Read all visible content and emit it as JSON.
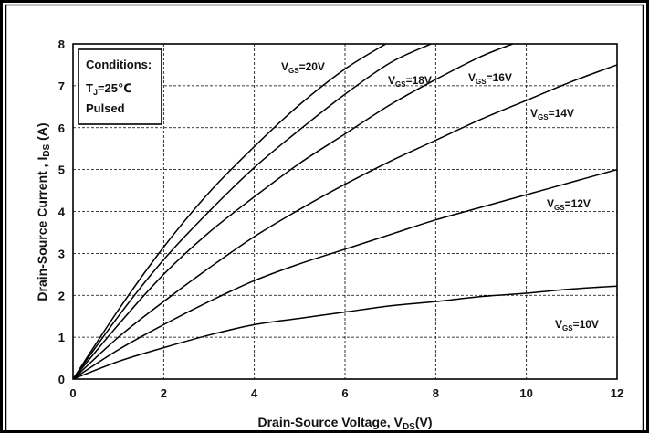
{
  "chart_data": {
    "type": "line",
    "xlabel": "Drain-Source Voltage, V",
    "xlabel_sub": "DS",
    "xlabel_tail": "(V)",
    "ylabel": "Drain-Source Current ,  I",
    "ylabel_sub": "DS",
    "ylabel_tail": "  (A)",
    "xlim": [
      0,
      12
    ],
    "ylim": [
      0,
      8
    ],
    "x_ticks": [
      "0",
      "2",
      "4",
      "6",
      "8",
      "10",
      "12"
    ],
    "y_ticks": [
      "0",
      "1",
      "2",
      "3",
      "4",
      "5",
      "6",
      "7",
      "8"
    ],
    "grid": "dashed",
    "conditions": {
      "title": "Conditions:",
      "temp_prefix": "T",
      "temp_sub": "J",
      "temp_value": "=25℃",
      "mode": "Pulsed"
    },
    "series": [
      {
        "name": "VGS=20V",
        "label_main": "V",
        "label_sub": "GS",
        "label_value": "=20V",
        "x": [
          0,
          1,
          2,
          3,
          4,
          5,
          6,
          6.9
        ],
        "y": [
          0,
          1.65,
          3.15,
          4.45,
          5.55,
          6.55,
          7.4,
          8.0
        ]
      },
      {
        "name": "VGS=18V",
        "label_main": "V",
        "label_sub": "GS",
        "label_value": "=18V",
        "x": [
          0,
          1,
          2,
          3,
          4,
          5,
          6,
          7,
          7.9
        ],
        "y": [
          0,
          1.5,
          2.85,
          4.0,
          5.05,
          5.95,
          6.8,
          7.55,
          8.0
        ]
      },
      {
        "name": "VGS=16V",
        "label_main": "V",
        "label_sub": "GS",
        "label_value": "=16V",
        "x": [
          0,
          1,
          2,
          3,
          4,
          5,
          6,
          7,
          8,
          9,
          9.7
        ],
        "y": [
          0,
          1.3,
          2.5,
          3.5,
          4.35,
          5.15,
          5.85,
          6.55,
          7.15,
          7.7,
          8.0
        ]
      },
      {
        "name": "VGS=14V",
        "label_main": "V",
        "label_sub": "GS",
        "label_value": "=14V",
        "x": [
          0,
          1,
          2,
          3,
          4,
          5,
          6,
          7,
          8,
          9,
          10,
          11,
          12
        ],
        "y": [
          0,
          1.0,
          1.85,
          2.65,
          3.4,
          4.05,
          4.65,
          5.2,
          5.7,
          6.2,
          6.65,
          7.1,
          7.5
        ]
      },
      {
        "name": "VGS=12V",
        "label_main": "V",
        "label_sub": "GS",
        "label_value": "=12V",
        "x": [
          0,
          1,
          2,
          3,
          4,
          5,
          6,
          7,
          8,
          9,
          10,
          11,
          12
        ],
        "y": [
          0,
          0.7,
          1.3,
          1.85,
          2.35,
          2.75,
          3.1,
          3.45,
          3.8,
          4.1,
          4.4,
          4.7,
          5.0
        ]
      },
      {
        "name": "VGS=10V",
        "label_main": "V",
        "label_sub": "GS",
        "label_value": "=10V",
        "x": [
          0,
          1,
          2,
          3,
          4,
          5,
          6,
          7,
          8,
          9,
          10,
          11,
          12
        ],
        "y": [
          0,
          0.42,
          0.75,
          1.05,
          1.3,
          1.45,
          1.6,
          1.75,
          1.85,
          1.97,
          2.05,
          2.15,
          2.22
        ]
      }
    ]
  }
}
